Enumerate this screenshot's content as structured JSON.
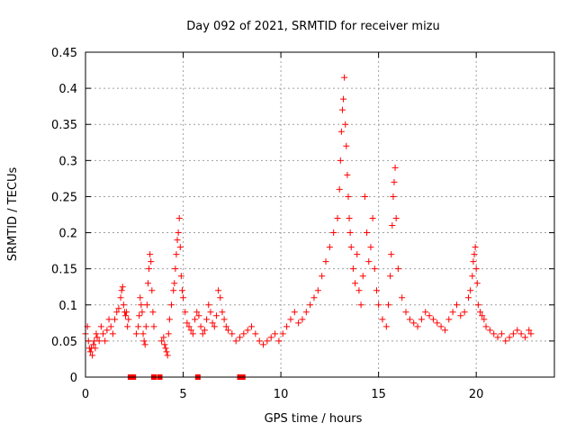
{
  "chart_data": {
    "type": "scatter",
    "title": "Day 092 of 2021, SRMTID for receiver mizu",
    "xlabel": "GPS time / hours",
    "ylabel": "SRMTID / TECUs",
    "xlim": [
      0,
      24
    ],
    "ylim": [
      0,
      0.45
    ],
    "xticks": [
      0,
      5,
      10,
      15,
      20
    ],
    "xtick_labels": [
      "0",
      "5",
      "10",
      "15",
      "20"
    ],
    "yticks": [
      0,
      0.05,
      0.1,
      0.15,
      0.2,
      0.25,
      0.3,
      0.35,
      0.4,
      0.45
    ],
    "ytick_labels": [
      "0",
      "0.05",
      "0.1",
      "0.15",
      "0.2",
      "0.25",
      "0.3",
      "0.35",
      "0.4",
      "0.45"
    ],
    "grid": true,
    "marker": "plus",
    "color": "#ff0000",
    "series": [
      {
        "name": "SRMTID",
        "x": [
          0.0,
          0.1,
          0.15,
          0.2,
          0.25,
          0.3,
          0.35,
          0.4,
          0.45,
          0.5,
          0.55,
          0.6,
          0.7,
          0.8,
          0.9,
          1.0,
          1.1,
          1.2,
          1.3,
          1.4,
          1.5,
          1.6,
          1.7,
          1.8,
          1.85,
          1.9,
          1.95,
          2.0,
          2.05,
          2.1,
          2.15,
          2.2,
          2.6,
          2.7,
          2.75,
          2.8,
          2.85,
          2.9,
          2.95,
          3.0,
          3.05,
          3.1,
          3.15,
          3.2,
          3.25,
          3.3,
          3.35,
          3.4,
          3.45,
          3.5,
          3.9,
          4.0,
          4.05,
          4.1,
          4.15,
          4.2,
          4.25,
          4.3,
          4.4,
          4.5,
          4.55,
          4.6,
          4.65,
          4.7,
          4.75,
          4.8,
          4.85,
          4.9,
          4.95,
          5.0,
          5.1,
          5.2,
          5.3,
          5.4,
          5.5,
          5.6,
          5.7,
          5.8,
          5.9,
          6.0,
          6.1,
          6.2,
          6.3,
          6.4,
          6.5,
          6.6,
          6.7,
          6.8,
          6.9,
          7.0,
          7.1,
          7.2,
          7.3,
          7.5,
          7.7,
          7.9,
          8.1,
          8.3,
          8.5,
          8.7,
          8.9,
          9.1,
          9.3,
          9.5,
          9.7,
          9.9,
          10.1,
          10.3,
          10.5,
          10.7,
          10.9,
          11.1,
          11.3,
          11.5,
          11.7,
          11.9,
          12.1,
          12.3,
          12.5,
          12.7,
          12.9,
          13.0,
          13.05,
          13.1,
          13.15,
          13.2,
          13.25,
          13.3,
          13.35,
          13.4,
          13.45,
          13.5,
          13.55,
          13.6,
          13.7,
          13.8,
          13.9,
          14.0,
          14.1,
          14.2,
          14.3,
          14.4,
          14.5,
          14.6,
          14.7,
          14.8,
          14.9,
          15.0,
          15.2,
          15.4,
          15.5,
          15.6,
          15.65,
          15.7,
          15.75,
          15.8,
          15.85,
          15.9,
          16.0,
          16.2,
          16.4,
          16.6,
          16.8,
          17.0,
          17.2,
          17.4,
          17.6,
          17.8,
          18.0,
          18.2,
          18.4,
          18.6,
          18.8,
          19.0,
          19.2,
          19.4,
          19.6,
          19.7,
          19.8,
          19.85,
          19.9,
          19.95,
          20.0,
          20.05,
          20.1,
          20.2,
          20.3,
          20.4,
          20.5,
          20.7,
          20.9,
          21.1,
          21.3,
          21.5,
          21.7,
          21.9,
          22.1,
          22.3,
          22.5,
          22.7,
          22.8
        ],
        "y": [
          0.06,
          0.07,
          0.05,
          0.04,
          0.035,
          0.04,
          0.03,
          0.045,
          0.05,
          0.04,
          0.06,
          0.055,
          0.05,
          0.07,
          0.06,
          0.05,
          0.065,
          0.08,
          0.07,
          0.06,
          0.08,
          0.09,
          0.095,
          0.11,
          0.12,
          0.125,
          0.1,
          0.09,
          0.085,
          0.09,
          0.07,
          0.08,
          0.06,
          0.07,
          0.085,
          0.11,
          0.1,
          0.09,
          0.06,
          0.05,
          0.045,
          0.07,
          0.1,
          0.13,
          0.15,
          0.17,
          0.16,
          0.12,
          0.09,
          0.07,
          0.05,
          0.055,
          0.045,
          0.04,
          0.035,
          0.03,
          0.06,
          0.08,
          0.1,
          0.12,
          0.13,
          0.15,
          0.17,
          0.19,
          0.2,
          0.22,
          0.18,
          0.14,
          0.12,
          0.11,
          0.09,
          0.075,
          0.07,
          0.065,
          0.06,
          0.08,
          0.09,
          0.085,
          0.07,
          0.06,
          0.065,
          0.08,
          0.1,
          0.09,
          0.075,
          0.07,
          0.085,
          0.12,
          0.11,
          0.09,
          0.08,
          0.07,
          0.065,
          0.06,
          0.05,
          0.055,
          0.06,
          0.065,
          0.07,
          0.06,
          0.05,
          0.045,
          0.05,
          0.055,
          0.06,
          0.05,
          0.06,
          0.07,
          0.08,
          0.09,
          0.075,
          0.08,
          0.09,
          0.1,
          0.11,
          0.12,
          0.14,
          0.16,
          0.18,
          0.2,
          0.22,
          0.26,
          0.3,
          0.34,
          0.37,
          0.385,
          0.415,
          0.35,
          0.32,
          0.28,
          0.25,
          0.22,
          0.2,
          0.18,
          0.15,
          0.13,
          0.17,
          0.12,
          0.1,
          0.14,
          0.25,
          0.2,
          0.16,
          0.18,
          0.22,
          0.15,
          0.12,
          0.1,
          0.08,
          0.07,
          0.1,
          0.14,
          0.17,
          0.21,
          0.25,
          0.27,
          0.29,
          0.22,
          0.15,
          0.11,
          0.09,
          0.08,
          0.075,
          0.07,
          0.08,
          0.09,
          0.085,
          0.08,
          0.075,
          0.07,
          0.065,
          0.08,
          0.09,
          0.1,
          0.085,
          0.09,
          0.11,
          0.12,
          0.14,
          0.16,
          0.17,
          0.18,
          0.15,
          0.13,
          0.1,
          0.09,
          0.085,
          0.08,
          0.07,
          0.065,
          0.06,
          0.055,
          0.06,
          0.05,
          0.055,
          0.06,
          0.065,
          0.06,
          0.055,
          0.065,
          0.06
        ]
      }
    ],
    "zero_markers_x": [
      2.3,
      2.45,
      3.5,
      3.8,
      5.75,
      7.9,
      8.05
    ]
  }
}
